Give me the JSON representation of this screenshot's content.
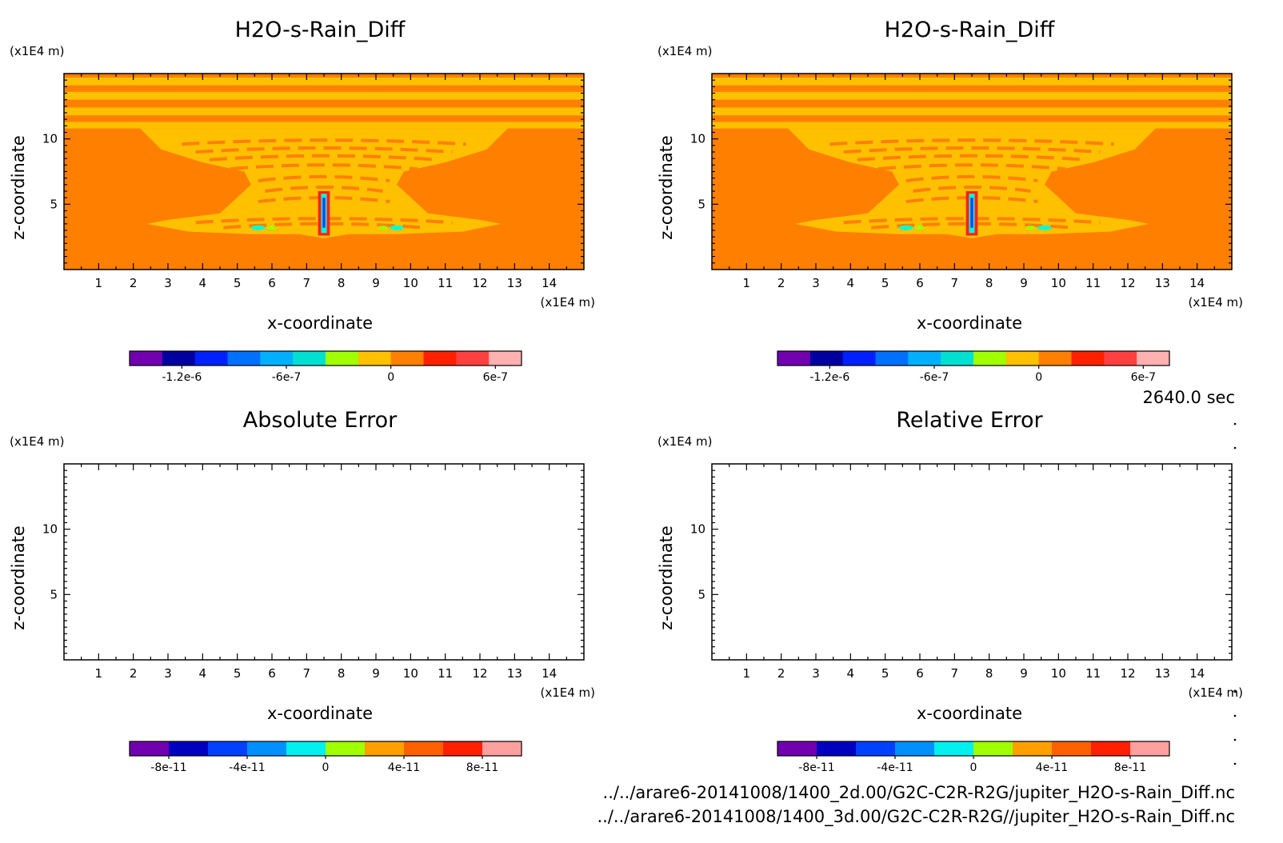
{
  "colors": {
    "field_bg": "#ff8000",
    "field_band": "#ffc000",
    "field_high": "#ff2020",
    "field_blue": "#0040ff",
    "field_cyan": "#00ffd0",
    "field_green": "#a0ff00",
    "axis": "#000000"
  },
  "time_label": "2640.0 sec",
  "file_paths": [
    "../../arare6-20141008/1400_2d.00/G2C-C2R-R2G/jupiter_H2O-s-Rain_Diff.nc",
    "../../arare6-20141008/1400_3d.00/G2C-C2R-R2G//jupiter_H2O-s-Rain_Diff.nc"
  ],
  "chart_data": [
    {
      "type": "heatmap",
      "title": "H2O-s-Rain_Diff",
      "xlabel": "x-coordinate",
      "ylabel": "z-coordinate",
      "x_unit": "(x1E4 m)",
      "y_unit": "(x1E4 m)",
      "xlim": [
        0,
        15
      ],
      "ylim": [
        0,
        15
      ],
      "x_ticks": [
        "1",
        "2",
        "3",
        "4",
        "5",
        "6",
        "7",
        "8",
        "9",
        "10",
        "11",
        "12",
        "13",
        "14"
      ],
      "y_ticks": [
        "5",
        "10"
      ],
      "filled": true,
      "colorbar": {
        "colors": [
          "#7000b0",
          "#0000a0",
          "#0020ff",
          "#0070ff",
          "#00b0ff",
          "#00e0d0",
          "#a0ff00",
          "#ffc000",
          "#ff8000",
          "#ff2000",
          "#ff4040",
          "#ffb0b0"
        ],
        "tick_labels": [
          "-1.2e-6",
          "-6e-7",
          "0",
          "6e-7"
        ],
        "tick_values": [
          -1.2e-06,
          -6e-07,
          0,
          6e-07
        ],
        "range": [
          -1.5e-06,
          7.5e-07
        ]
      }
    },
    {
      "type": "heatmap",
      "title": "H2O-s-Rain_Diff",
      "xlabel": "x-coordinate",
      "ylabel": "z-coordinate",
      "x_unit": "(x1E4 m)",
      "y_unit": "(x1E4 m)",
      "xlim": [
        0,
        15
      ],
      "ylim": [
        0,
        15
      ],
      "x_ticks": [
        "1",
        "2",
        "3",
        "4",
        "5",
        "6",
        "7",
        "8",
        "9",
        "10",
        "11",
        "12",
        "13",
        "14"
      ],
      "y_ticks": [
        "5",
        "10"
      ],
      "filled": true,
      "colorbar": {
        "colors": [
          "#7000b0",
          "#0000a0",
          "#0020ff",
          "#0070ff",
          "#00b0ff",
          "#00e0d0",
          "#a0ff00",
          "#ffc000",
          "#ff8000",
          "#ff2000",
          "#ff4040",
          "#ffb0b0"
        ],
        "tick_labels": [
          "-1.2e-6",
          "-6e-7",
          "0",
          "6e-7"
        ],
        "tick_values": [
          -1.2e-06,
          -6e-07,
          0,
          6e-07
        ],
        "range": [
          -1.5e-06,
          7.5e-07
        ]
      }
    },
    {
      "type": "heatmap",
      "title": "Absolute Error",
      "xlabel": "x-coordinate",
      "ylabel": "z-coordinate",
      "x_unit": "(x1E4 m)",
      "y_unit": "(x1E4 m)",
      "xlim": [
        0,
        15
      ],
      "ylim": [
        0,
        15
      ],
      "x_ticks": [
        "1",
        "2",
        "3",
        "4",
        "5",
        "6",
        "7",
        "8",
        "9",
        "10",
        "11",
        "12",
        "13",
        "14"
      ],
      "y_ticks": [
        "5",
        "10"
      ],
      "filled": false,
      "colorbar": {
        "colors": [
          "#7000b0",
          "#0000c0",
          "#0040ff",
          "#0090ff",
          "#00f0f0",
          "#a0ff00",
          "#ffa000",
          "#ff6000",
          "#ff2000",
          "#ffa0a0"
        ],
        "tick_labels": [
          "-8e-11",
          "-4e-11",
          "0",
          "4e-11",
          "8e-11"
        ],
        "tick_values": [
          -8e-11,
          -4e-11,
          0,
          4e-11,
          8e-11
        ],
        "range": [
          -1e-10,
          1e-10
        ]
      }
    },
    {
      "type": "heatmap",
      "title": "Relative Error",
      "xlabel": "x-coordinate",
      "ylabel": "z-coordinate",
      "x_unit": "(x1E4 m)",
      "y_unit": "(x1E4 m)",
      "xlim": [
        0,
        15
      ],
      "ylim": [
        0,
        15
      ],
      "x_ticks": [
        "1",
        "2",
        "3",
        "4",
        "5",
        "6",
        "7",
        "8",
        "9",
        "10",
        "11",
        "12",
        "13",
        "14"
      ],
      "y_ticks": [
        "5",
        "10"
      ],
      "filled": false,
      "colorbar": {
        "colors": [
          "#7000b0",
          "#0000c0",
          "#0040ff",
          "#0090ff",
          "#00f0f0",
          "#a0ff00",
          "#ffa000",
          "#ff6000",
          "#ff2000",
          "#ffa0a0"
        ],
        "tick_labels": [
          "-8e-11",
          "-4e-11",
          "0",
          "4e-11",
          "8e-11"
        ],
        "tick_values": [
          -8e-11,
          -4e-11,
          0,
          4e-11,
          8e-11
        ],
        "range": [
          -1e-10,
          1e-10
        ]
      }
    }
  ]
}
